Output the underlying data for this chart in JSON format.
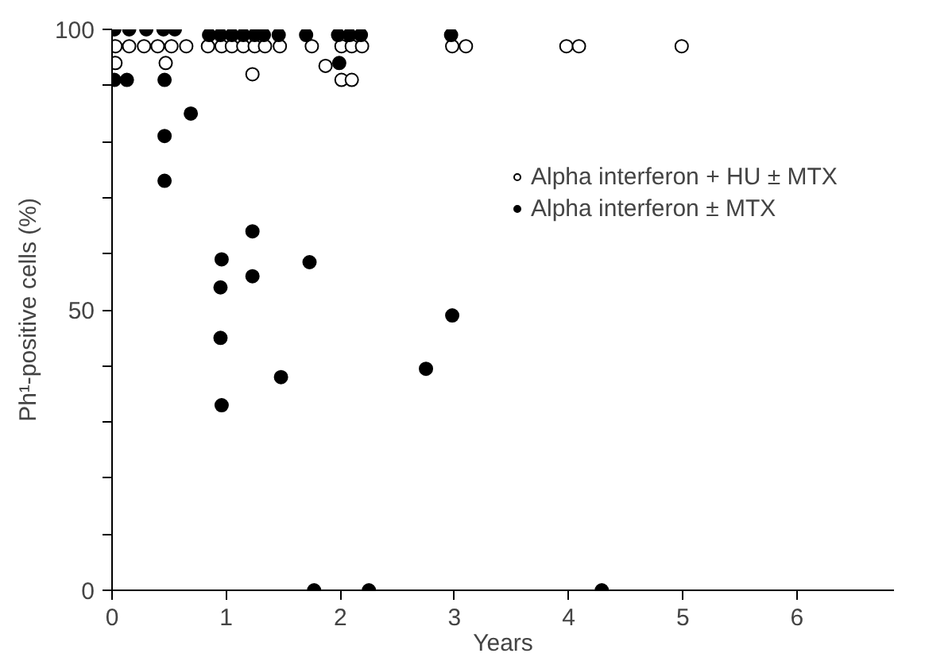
{
  "chart_data": {
    "type": "scatter",
    "xlabel": "Years",
    "ylabel": "Ph¹-positive cells (%)",
    "xlim": [
      0,
      6.85
    ],
    "ylim": [
      0,
      100
    ],
    "xticks": [
      0,
      1,
      2,
      3,
      4,
      5,
      6
    ],
    "yticks": [
      0,
      {
        "value": 10,
        "label": null
      },
      {
        "value": 20,
        "label": null
      },
      {
        "value": 30,
        "label": null
      },
      {
        "value": 40,
        "label": null
      },
      50,
      {
        "value": 60,
        "label": null
      },
      {
        "value": 70,
        "label": null
      },
      {
        "value": 80,
        "label": null
      },
      {
        "value": 90,
        "label": null
      },
      100
    ],
    "grid": false,
    "legend": "right",
    "marker": "circle",
    "series": [
      {
        "name": "Alpha interferon + HU ± MTX",
        "color": "#ffffff",
        "x": [
          0.03,
          0.15,
          0.28,
          0.4,
          0.52,
          0.65,
          0.84,
          0.96,
          1.05,
          1.15,
          1.25,
          1.34,
          1.47,
          1.75,
          2.01,
          2.1,
          2.19,
          2.98,
          3.1,
          3.98,
          4.09,
          4.99,
          0.03,
          0.47,
          1.23,
          1.87,
          2.01,
          2.1
        ],
        "values": [
          97,
          97,
          97,
          97,
          97,
          97,
          97,
          97,
          97,
          97,
          97,
          97,
          97,
          97,
          97,
          97,
          97,
          97,
          97,
          97,
          97,
          97,
          94,
          94,
          92,
          93.5,
          91,
          91
        ]
      },
      {
        "name": "Alpha interferon ± MTX",
        "color": "#000000",
        "x": [
          0.02,
          0.15,
          0.3,
          0.45,
          0.55,
          0.85,
          0.95,
          1.05,
          1.15,
          1.25,
          1.33,
          1.46,
          1.7,
          1.98,
          2.08,
          2.18,
          2.97,
          0.02,
          0.13,
          0.46,
          0.46,
          0.46,
          0.69,
          0.96,
          1.23,
          1.23,
          1.73,
          0.95,
          0.95,
          1.48,
          2.75,
          2.98,
          0.96,
          1.77,
          2.25,
          4.29,
          1.99
        ],
        "values": [
          100,
          100,
          100,
          100,
          100,
          99,
          99,
          99,
          99,
          99,
          99,
          99,
          99,
          99,
          99,
          99,
          99,
          91,
          91,
          91,
          81,
          73,
          85,
          59,
          64,
          56,
          58.5,
          54,
          45,
          38,
          39.5,
          49,
          33,
          0,
          0,
          0,
          94
        ]
      }
    ]
  }
}
